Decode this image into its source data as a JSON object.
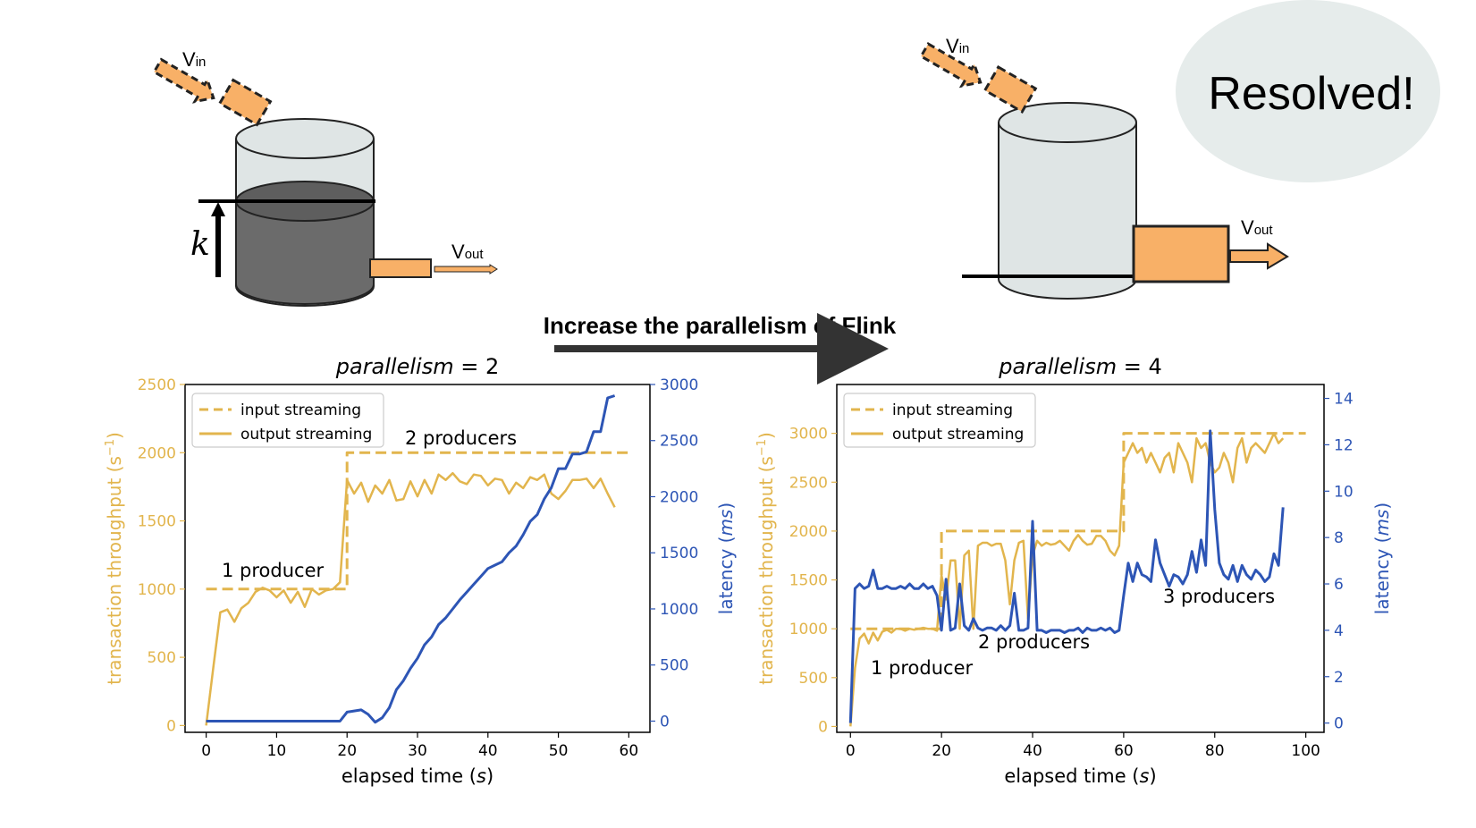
{
  "diagram": {
    "left": {
      "v_in": "V",
      "v_in_sub": "in",
      "v_out": "V",
      "v_out_sub": "out",
      "k_label": "k"
    },
    "right": {
      "v_in": "V",
      "v_in_sub": "in",
      "v_out": "V",
      "v_out_sub": "out"
    },
    "arrow_label": "Increase the parallelism of Flink",
    "badge": "Resolved!"
  },
  "colors": {
    "throughput": "#e2b54d",
    "latency": "#2d55b5",
    "tank_fill": "#dfe5e5",
    "liquid": "#6b6b6b",
    "pipe": "#f8b067",
    "badge_bg": "#e6eceb"
  },
  "chart_data": [
    {
      "type": "line",
      "title_text": "parallelism",
      "title_value": "= 2",
      "xlabel_text": "elapsed time (",
      "xlabel_unit": "s",
      "ylabel_left": "transaction throughput (s",
      "ylabel_left_sup": "−1",
      "ylabel_right_text": "latency (",
      "ylabel_right_unit": "ms",
      "xlim": [
        -3,
        63
      ],
      "ylim_left": [
        -50,
        2500
      ],
      "ylim_right": [
        -100,
        3000
      ],
      "xticks": [
        0,
        10,
        20,
        30,
        40,
        50,
        60
      ],
      "yticks_left": [
        0,
        500,
        1000,
        1500,
        2000,
        2500
      ],
      "yticks_right": [
        0,
        500,
        1000,
        1500,
        2000,
        2500,
        3000
      ],
      "legend": [
        "input streaming",
        "output streaming"
      ],
      "legend_position": "upper-left",
      "annotations": [
        "1 producer",
        "2 producers"
      ],
      "series": [
        {
          "name": "input streaming",
          "axis": "left",
          "style": "dashed",
          "x": [
            0,
            20,
            20,
            60
          ],
          "y": [
            1000,
            1000,
            2000,
            2000
          ]
        },
        {
          "name": "output streaming",
          "axis": "left",
          "style": "solid",
          "x": [
            0,
            1,
            2,
            3,
            4,
            5,
            6,
            7,
            8,
            9,
            10,
            11,
            12,
            13,
            14,
            15,
            16,
            17,
            18,
            19,
            20,
            21,
            22,
            23,
            24,
            25,
            26,
            27,
            28,
            29,
            30,
            31,
            32,
            33,
            34,
            35,
            36,
            37,
            38,
            39,
            40,
            41,
            42,
            43,
            44,
            45,
            46,
            47,
            48,
            49,
            50,
            51,
            52,
            53,
            54,
            55,
            56,
            57,
            58
          ],
          "y": [
            0,
            420,
            830,
            850,
            760,
            860,
            900,
            980,
            1010,
            990,
            940,
            990,
            900,
            980,
            870,
            1000,
            960,
            990,
            1000,
            1050,
            1800,
            1700,
            1780,
            1640,
            1760,
            1700,
            1800,
            1650,
            1660,
            1790,
            1680,
            1800,
            1700,
            1840,
            1800,
            1850,
            1790,
            1770,
            1840,
            1830,
            1760,
            1810,
            1800,
            1700,
            1780,
            1740,
            1820,
            1800,
            1840,
            1700,
            1660,
            1720,
            1800,
            1800,
            1810,
            1740,
            1810,
            1700,
            1600
          ]
        },
        {
          "name": "latency",
          "axis": "right",
          "style": "solid",
          "x": [
            0,
            19,
            20,
            22,
            23,
            24,
            25,
            26,
            27,
            28,
            29,
            30,
            31,
            32,
            33,
            34,
            35,
            36,
            37,
            38,
            39,
            40,
            41,
            42,
            43,
            44,
            45,
            46,
            47,
            48,
            49,
            50,
            51,
            52,
            53,
            54,
            55,
            56,
            57,
            58
          ],
          "y": [
            0,
            0,
            80,
            100,
            60,
            -10,
            30,
            120,
            280,
            360,
            470,
            560,
            680,
            750,
            860,
            920,
            1000,
            1080,
            1150,
            1220,
            1290,
            1360,
            1390,
            1420,
            1500,
            1560,
            1660,
            1780,
            1840,
            1980,
            2080,
            2250,
            2250,
            2380,
            2380,
            2400,
            2580,
            2580,
            2880,
            2900
          ]
        }
      ]
    },
    {
      "type": "line",
      "title_text": "parallelism",
      "title_value": "= 4",
      "xlabel_text": "elapsed time (",
      "xlabel_unit": "s",
      "ylabel_left": "transaction throughput (s",
      "ylabel_left_sup": "−1",
      "ylabel_right_text": "latency (",
      "ylabel_right_unit": "ms",
      "xlim": [
        -3,
        104
      ],
      "ylim_left": [
        -60,
        3500
      ],
      "ylim_right": [
        -0.4,
        14.6
      ],
      "xticks": [
        0,
        20,
        40,
        60,
        80,
        100
      ],
      "yticks_left": [
        0,
        500,
        1000,
        1500,
        2000,
        2500,
        3000
      ],
      "yticks_right": [
        0,
        2,
        4,
        6,
        8,
        10,
        12,
        14
      ],
      "legend": [
        "input streaming",
        "output streaming"
      ],
      "legend_position": "upper-left",
      "annotations": [
        "1 producer",
        "2 producers",
        "3 producers"
      ],
      "series": [
        {
          "name": "input streaming",
          "axis": "left",
          "style": "dashed",
          "x": [
            0,
            20,
            20,
            60,
            60,
            100
          ],
          "y": [
            1000,
            1000,
            2000,
            2000,
            3000,
            3000
          ]
        },
        {
          "name": "output streaming",
          "axis": "left",
          "style": "solid",
          "x": [
            0,
            1,
            2,
            3,
            4,
            5,
            6,
            7,
            8,
            9,
            10,
            11,
            12,
            13,
            14,
            15,
            16,
            17,
            18,
            19,
            20,
            21,
            22,
            23,
            24,
            25,
            26,
            27,
            28,
            29,
            30,
            31,
            32,
            33,
            34,
            35,
            36,
            37,
            38,
            39,
            40,
            41,
            42,
            43,
            44,
            45,
            46,
            47,
            48,
            49,
            50,
            51,
            52,
            53,
            54,
            55,
            56,
            57,
            58,
            59,
            60,
            61,
            62,
            63,
            64,
            65,
            66,
            67,
            68,
            69,
            70,
            71,
            72,
            73,
            74,
            75,
            76,
            77,
            78,
            79,
            80,
            81,
            82,
            83,
            84,
            85,
            86,
            87,
            88,
            89,
            90,
            91,
            92,
            93,
            94,
            95
          ],
          "y": [
            0,
            600,
            900,
            950,
            850,
            960,
            880,
            970,
            990,
            960,
            1000,
            1000,
            980,
            1000,
            990,
            1000,
            1010,
            1000,
            1000,
            980,
            1550,
            1300,
            1700,
            1700,
            1000,
            1750,
            1800,
            1000,
            1850,
            1880,
            1880,
            1850,
            1870,
            1870,
            1700,
            1250,
            1700,
            1880,
            1900,
            1100,
            1750,
            1900,
            1850,
            1880,
            1860,
            1870,
            1900,
            1850,
            1800,
            1900,
            1960,
            1900,
            1860,
            1870,
            1950,
            1950,
            1900,
            1800,
            1750,
            1850,
            2700,
            2800,
            2900,
            2800,
            2850,
            2700,
            2800,
            2700,
            2600,
            2750,
            2800,
            2600,
            2900,
            2800,
            2700,
            2500,
            2950,
            2850,
            2900,
            2700,
            2600,
            2650,
            2800,
            2700,
            2500,
            2850,
            2950,
            2700,
            2850,
            2900,
            2850,
            2800,
            2900,
            3000,
            2900,
            2950
          ]
        },
        {
          "name": "latency",
          "axis": "right",
          "style": "solid",
          "x": [
            0,
            1,
            2,
            3,
            4,
            5,
            6,
            7,
            8,
            9,
            10,
            11,
            12,
            13,
            14,
            15,
            16,
            17,
            18,
            19,
            20,
            21,
            22,
            23,
            24,
            25,
            26,
            27,
            28,
            29,
            30,
            31,
            32,
            33,
            34,
            35,
            36,
            37,
            38,
            39,
            40,
            41,
            42,
            43,
            44,
            45,
            46,
            47,
            48,
            49,
            50,
            51,
            52,
            53,
            54,
            55,
            56,
            57,
            58,
            59,
            60,
            61,
            62,
            63,
            64,
            65,
            66,
            67,
            68,
            69,
            70,
            71,
            72,
            73,
            74,
            75,
            76,
            77,
            78,
            79,
            80,
            81,
            82,
            83,
            84,
            85,
            86,
            87,
            88,
            89,
            90,
            91,
            92,
            93,
            94,
            95
          ],
          "y": [
            0,
            5.8,
            6.0,
            5.8,
            5.9,
            6.6,
            5.8,
            5.8,
            5.9,
            5.8,
            5.8,
            5.9,
            5.8,
            6.0,
            5.8,
            5.8,
            6.0,
            5.8,
            5.9,
            5.5,
            4.0,
            6.2,
            4.0,
            4.1,
            6.0,
            4.2,
            4.0,
            4.5,
            4.1,
            4.0,
            4.1,
            4.1,
            4.0,
            4.2,
            4.0,
            4.2,
            5.6,
            4.0,
            4.0,
            4.1,
            8.7,
            4.0,
            4.0,
            3.9,
            4.0,
            4.0,
            4.0,
            3.9,
            4.0,
            4.0,
            4.1,
            3.9,
            4.1,
            4.0,
            4.0,
            4.1,
            4.0,
            4.1,
            3.9,
            4.0,
            5.5,
            6.9,
            6.1,
            6.9,
            6.4,
            6.3,
            6.1,
            7.9,
            6.9,
            6.4,
            5.9,
            6.4,
            6.3,
            6.0,
            6.4,
            7.4,
            6.5,
            7.9,
            6.8,
            12.6,
            9.2,
            6.9,
            6.4,
            6.2,
            6.8,
            6.1,
            6.8,
            6.4,
            6.2,
            6.6,
            6.4,
            6.1,
            6.3,
            7.3,
            6.8,
            9.3
          ]
        }
      ]
    }
  ]
}
